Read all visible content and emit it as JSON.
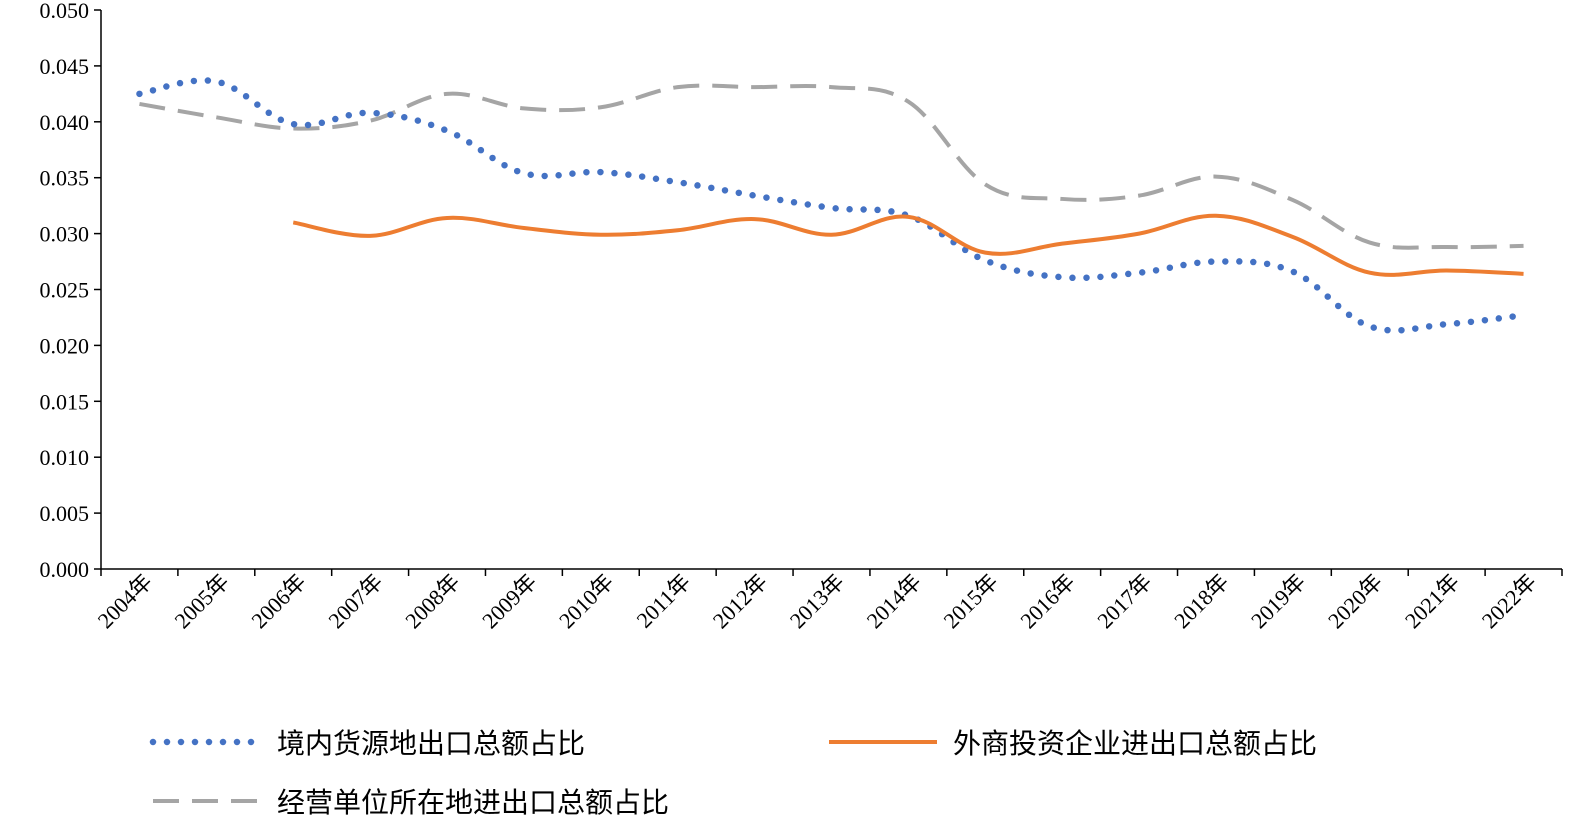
{
  "chart_data": {
    "type": "line",
    "title": "",
    "xlabel": "",
    "ylabel": "",
    "ylim": [
      0,
      0.05
    ],
    "yticks": [
      "0.000",
      "0.005",
      "0.010",
      "0.015",
      "0.020",
      "0.025",
      "0.030",
      "0.035",
      "0.040",
      "0.045",
      "0.050"
    ],
    "categories": [
      "2004年",
      "2005年",
      "2006年",
      "2007年",
      "2008年",
      "2009年",
      "2010年",
      "2011年",
      "2012年",
      "2013年",
      "2014年",
      "2015年",
      "2016年",
      "2017年",
      "2018年",
      "2019年",
      "2020年",
      "2021年",
      "2022年"
    ],
    "grid": false,
    "legend_position": "bottom",
    "series": [
      {
        "name": "境内货源地出口总额占比",
        "style": "dotted",
        "color": "#4472C4",
        "values": [
          0.0425,
          0.0436,
          0.0398,
          0.0408,
          0.0392,
          0.0354,
          0.0355,
          0.0346,
          0.0334,
          0.0323,
          0.0316,
          0.0276,
          0.0261,
          0.0265,
          0.0275,
          0.0266,
          0.0217,
          0.0219,
          0.0227
        ]
      },
      {
        "name": "外商投资企业进出口总额占比",
        "style": "solid",
        "color": "#ED7D31",
        "values": [
          null,
          null,
          0.031,
          0.0298,
          0.0314,
          0.0305,
          0.0299,
          0.0303,
          0.0313,
          0.0299,
          0.0315,
          0.0283,
          0.0291,
          0.03,
          0.0316,
          0.0297,
          0.0265,
          0.0267,
          0.0264
        ]
      },
      {
        "name": "经营单位所在地进出口总额占比",
        "style": "dashed",
        "color": "#A5A5A5",
        "values": [
          0.0416,
          0.0404,
          0.0394,
          0.0401,
          0.0425,
          0.0412,
          0.0413,
          0.0431,
          0.0431,
          0.0431,
          0.0418,
          0.0344,
          0.0331,
          0.0334,
          0.0351,
          0.033,
          0.0292,
          0.0288,
          0.0289
        ]
      }
    ]
  }
}
